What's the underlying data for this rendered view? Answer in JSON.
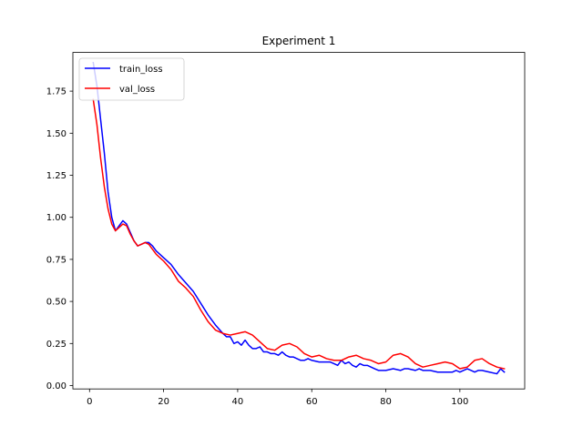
{
  "chart_data": {
    "type": "line",
    "title": "Experiment 1",
    "xlabel": "",
    "ylabel": "",
    "xlim": [
      -4.5,
      117.5
    ],
    "ylim": [
      -0.02,
      1.98
    ],
    "xticks": [
      0,
      20,
      40,
      60,
      80,
      100
    ],
    "yticks": [
      0.0,
      0.25,
      0.5,
      0.75,
      1.0,
      1.25,
      1.5,
      1.75
    ],
    "xtick_labels": [
      "0",
      "20",
      "40",
      "60",
      "80",
      "100"
    ],
    "ytick_labels": [
      "0.00",
      "0.25",
      "0.50",
      "0.75",
      "1.00",
      "1.25",
      "1.50",
      "1.75"
    ],
    "grid": false,
    "legend_position": "upper-left",
    "series": [
      {
        "name": "train_loss",
        "color": "#0000ff",
        "x": [
          1,
          2,
          3,
          4,
          5,
          6,
          7,
          8,
          9,
          10,
          11,
          12,
          13,
          14,
          15,
          16,
          17,
          18,
          19,
          20,
          22,
          24,
          26,
          28,
          30,
          32,
          34,
          36,
          37,
          38,
          39,
          40,
          41,
          42,
          43,
          44,
          45,
          46,
          47,
          48,
          49,
          50,
          51,
          52,
          53,
          54,
          55,
          56,
          57,
          58,
          59,
          60,
          62,
          64,
          65,
          66,
          67,
          68,
          69,
          70,
          71,
          72,
          73,
          74,
          75,
          76,
          77,
          78,
          80,
          82,
          84,
          85,
          86,
          88,
          89,
          90,
          92,
          94,
          96,
          98,
          99,
          100,
          101,
          102,
          103,
          104,
          105,
          106,
          108,
          110,
          111,
          112
        ],
        "values": [
          1.92,
          1.78,
          1.58,
          1.38,
          1.15,
          1.0,
          0.92,
          0.95,
          0.98,
          0.96,
          0.91,
          0.86,
          0.83,
          0.84,
          0.85,
          0.85,
          0.83,
          0.8,
          0.78,
          0.76,
          0.72,
          0.66,
          0.61,
          0.56,
          0.49,
          0.42,
          0.36,
          0.31,
          0.29,
          0.29,
          0.25,
          0.26,
          0.24,
          0.27,
          0.24,
          0.22,
          0.22,
          0.23,
          0.2,
          0.2,
          0.19,
          0.19,
          0.18,
          0.2,
          0.18,
          0.17,
          0.17,
          0.16,
          0.15,
          0.15,
          0.16,
          0.15,
          0.14,
          0.14,
          0.14,
          0.13,
          0.12,
          0.15,
          0.13,
          0.14,
          0.12,
          0.11,
          0.13,
          0.12,
          0.12,
          0.11,
          0.1,
          0.09,
          0.09,
          0.1,
          0.09,
          0.1,
          0.1,
          0.09,
          0.1,
          0.09,
          0.09,
          0.08,
          0.08,
          0.08,
          0.09,
          0.08,
          0.09,
          0.1,
          0.09,
          0.08,
          0.09,
          0.09,
          0.08,
          0.07,
          0.1,
          0.08
        ]
      },
      {
        "name": "val_loss",
        "color": "#ff0000",
        "x": [
          1,
          2,
          3,
          4,
          5,
          6,
          7,
          8,
          9,
          10,
          11,
          12,
          13,
          14,
          15,
          16,
          17,
          18,
          19,
          20,
          22,
          24,
          26,
          28,
          30,
          32,
          34,
          36,
          38,
          40,
          42,
          44,
          46,
          48,
          50,
          52,
          54,
          56,
          58,
          60,
          62,
          64,
          66,
          68,
          70,
          72,
          74,
          76,
          78,
          80,
          82,
          84,
          86,
          88,
          90,
          92,
          94,
          96,
          98,
          100,
          102,
          104,
          106,
          108,
          110,
          112
        ],
        "values": [
          1.7,
          1.55,
          1.35,
          1.18,
          1.05,
          0.96,
          0.92,
          0.94,
          0.96,
          0.95,
          0.9,
          0.86,
          0.83,
          0.84,
          0.85,
          0.84,
          0.81,
          0.78,
          0.76,
          0.74,
          0.69,
          0.62,
          0.58,
          0.53,
          0.45,
          0.38,
          0.33,
          0.31,
          0.3,
          0.31,
          0.32,
          0.3,
          0.26,
          0.22,
          0.21,
          0.24,
          0.25,
          0.23,
          0.19,
          0.17,
          0.18,
          0.16,
          0.15,
          0.15,
          0.17,
          0.18,
          0.16,
          0.15,
          0.13,
          0.14,
          0.18,
          0.19,
          0.17,
          0.13,
          0.11,
          0.12,
          0.13,
          0.14,
          0.13,
          0.1,
          0.11,
          0.15,
          0.16,
          0.13,
          0.11,
          0.1
        ]
      }
    ]
  }
}
